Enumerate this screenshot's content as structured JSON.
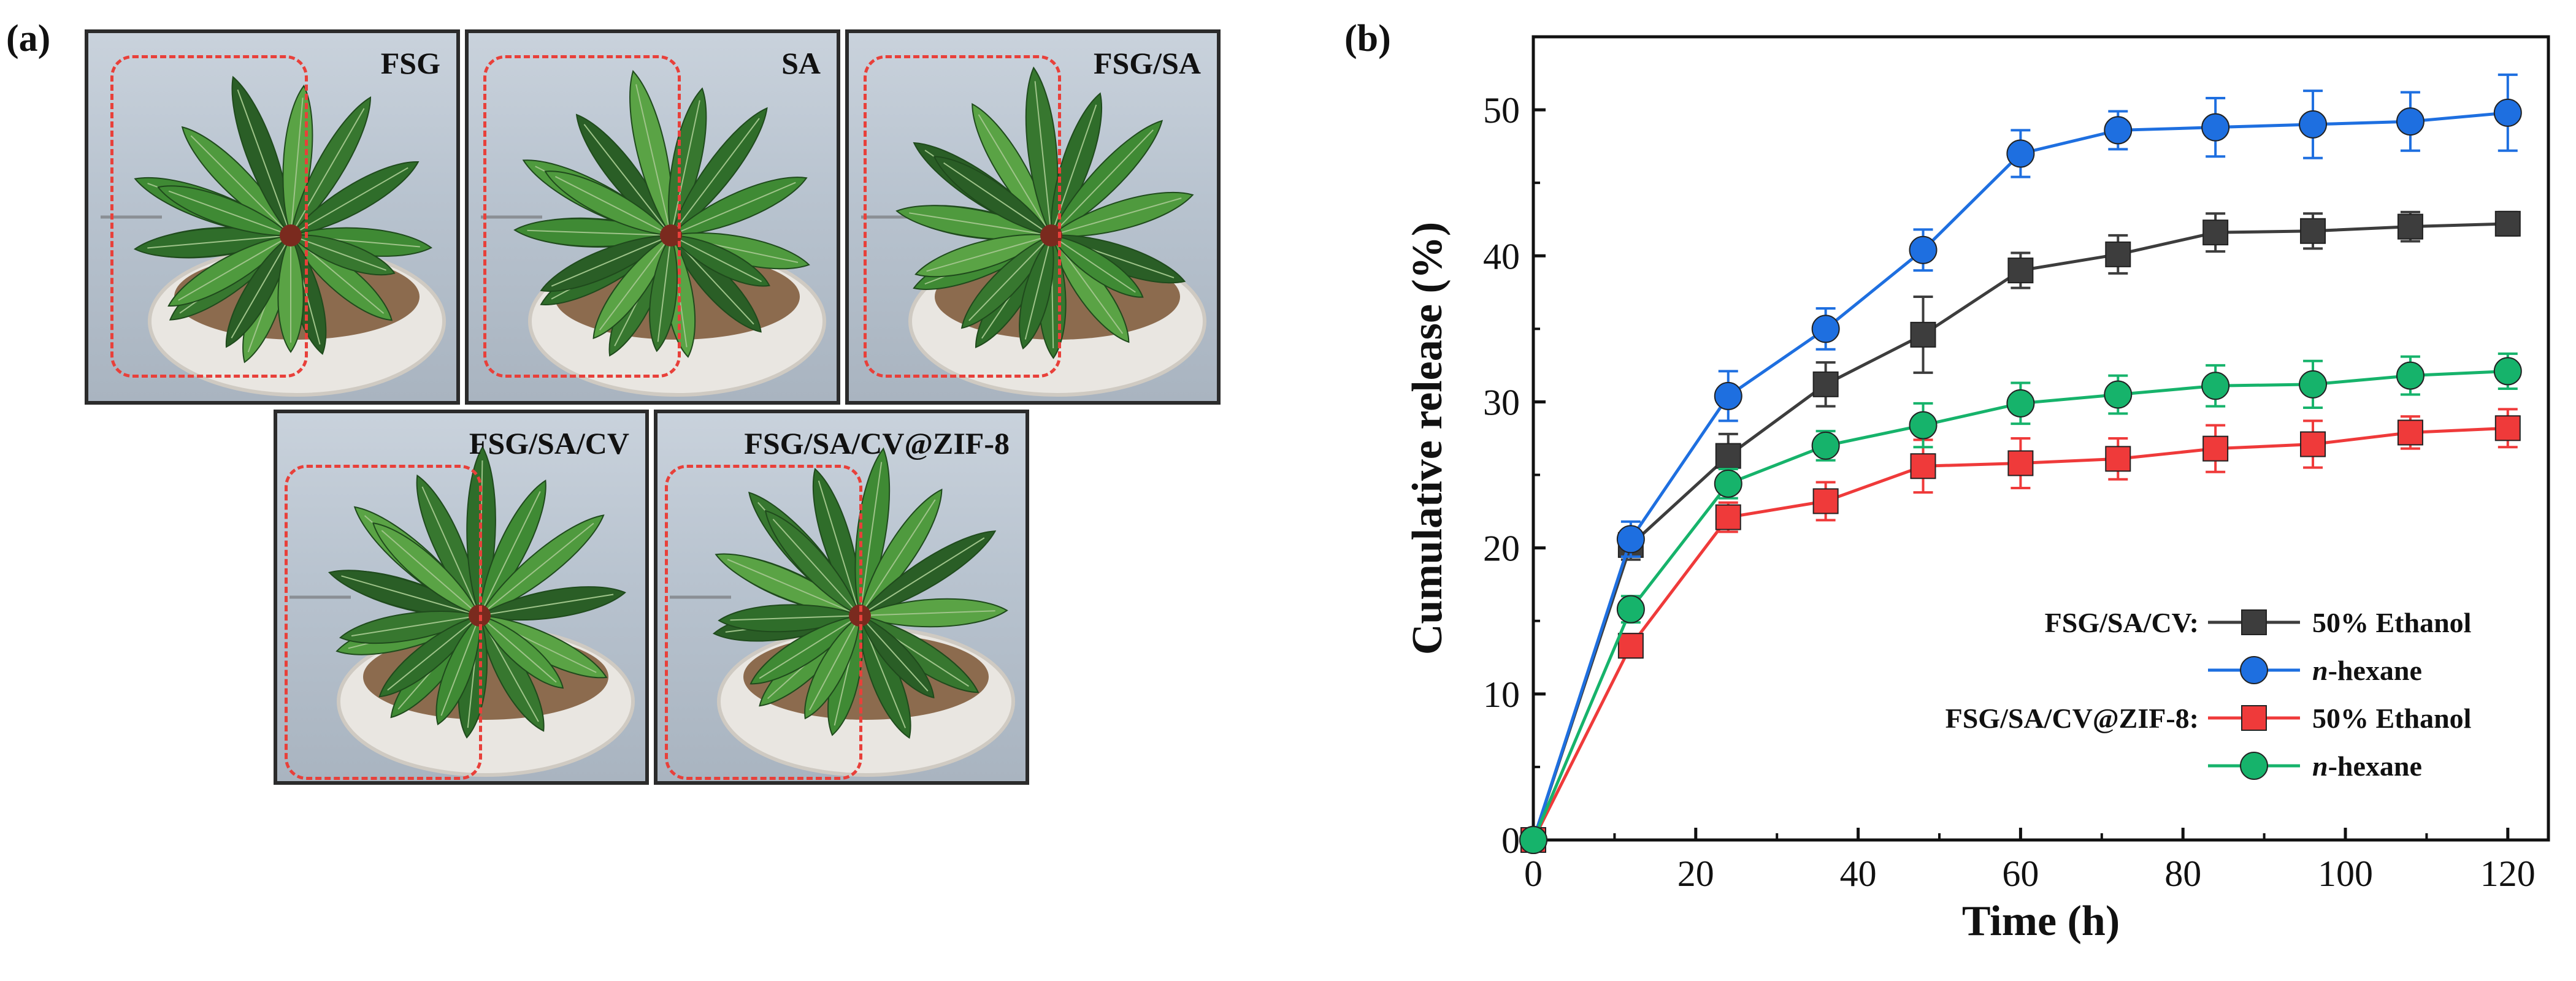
{
  "panels": {
    "a_label": "(a)",
    "b_label": "(b)"
  },
  "photos": [
    {
      "label": "FSG"
    },
    {
      "label": "SA"
    },
    {
      "label": "FSG/SA"
    },
    {
      "label": "FSG/SA/CV"
    },
    {
      "label": "FSG/SA/CV@ZIF-8"
    }
  ],
  "colors": {
    "black_series": "#3d3d3d",
    "blue_series": "#1e6fe0",
    "red_series": "#ef3a3a",
    "green_series": "#16b36b",
    "dash_box": "#e8403a"
  },
  "chart_data": {
    "type": "line",
    "xlabel": "Time (h)",
    "ylabel": "Cumulative release (%)",
    "xlim": [
      0,
      125
    ],
    "ylim": [
      0,
      55
    ],
    "xticks": [
      0,
      20,
      40,
      60,
      80,
      100,
      120
    ],
    "yticks": [
      0,
      10,
      20,
      30,
      40,
      50
    ],
    "x": [
      0,
      12,
      24,
      36,
      48,
      60,
      72,
      84,
      96,
      108,
      120
    ],
    "legend_placement": "bottom-right",
    "legend_groups": [
      {
        "group_label": "FSG/SA/CV:",
        "entries": [
          {
            "series_index": 0,
            "text": "50% Ethanol"
          },
          {
            "series_index": 1,
            "prefix": "n",
            "text": "-hexane"
          }
        ]
      },
      {
        "group_label": "FSG/SA/CV@ZIF-8:",
        "entries": [
          {
            "series_index": 2,
            "text": "50% Ethanol"
          },
          {
            "series_index": 3,
            "prefix": "n",
            "text": "-hexane"
          }
        ]
      }
    ],
    "series": [
      {
        "marker": "square",
        "color": "#3d3d3d",
        "values": [
          0,
          20.2,
          26.3,
          31.2,
          34.6,
          39.0,
          40.1,
          41.6,
          41.7,
          42.0,
          42.2
        ],
        "errors": [
          0,
          1.0,
          1.5,
          1.5,
          2.6,
          1.2,
          1.3,
          1.3,
          1.2,
          1.0,
          0.8
        ]
      },
      {
        "marker": "circle",
        "color": "#1e6fe0",
        "values": [
          0,
          20.6,
          30.4,
          35.0,
          40.4,
          47.0,
          48.6,
          48.8,
          49.0,
          49.2,
          49.8
        ],
        "errors": [
          0,
          1.2,
          1.7,
          1.4,
          1.4,
          1.6,
          1.3,
          2.0,
          2.3,
          2.0,
          2.6
        ]
      },
      {
        "marker": "square",
        "color": "#ef3a3a",
        "values": [
          0,
          13.3,
          22.1,
          23.2,
          25.6,
          25.8,
          26.1,
          26.8,
          27.1,
          27.9,
          28.2
        ],
        "errors": [
          0,
          0.8,
          1.0,
          1.3,
          1.8,
          1.7,
          1.4,
          1.6,
          1.6,
          1.1,
          1.3
        ]
      },
      {
        "marker": "circle",
        "color": "#16b36b",
        "values": [
          0,
          15.8,
          24.4,
          27.0,
          28.4,
          29.9,
          30.5,
          31.1,
          31.2,
          31.8,
          32.1
        ],
        "errors": [
          0,
          0.9,
          1.0,
          1.0,
          1.5,
          1.4,
          1.3,
          1.4,
          1.6,
          1.3,
          1.2
        ]
      }
    ]
  }
}
